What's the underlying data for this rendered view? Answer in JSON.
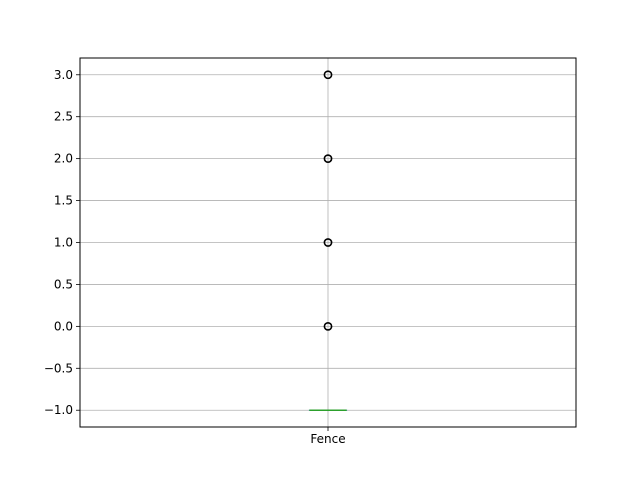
{
  "chart_data": {
    "type": "box",
    "title": "",
    "xlabel": "",
    "ylabel": "",
    "categories": [
      "Fence"
    ],
    "ylim": [
      -1.2,
      3.2
    ],
    "yticks": [
      3.0,
      2.5,
      2.0,
      1.5,
      1.0,
      0.5,
      0.0,
      -0.5,
      -1.0
    ],
    "ytick_labels": [
      "3.0",
      "2.5",
      "2.0",
      "1.5",
      "1.0",
      "0.5",
      "0.0",
      "−0.5",
      "−1.0"
    ],
    "grid": true,
    "boxes": [
      {
        "name": "Fence",
        "q1": -1.0,
        "median": -1.0,
        "q3": -1.0,
        "whisker_low": -1.0,
        "whisker_high": -1.0,
        "outliers": [
          0.0,
          1.0,
          2.0,
          3.0
        ]
      }
    ],
    "colors": {
      "box": "#1f77b4",
      "median": "#2ca02c",
      "grid": "#b0b0b0",
      "outlier": "#000000"
    }
  }
}
